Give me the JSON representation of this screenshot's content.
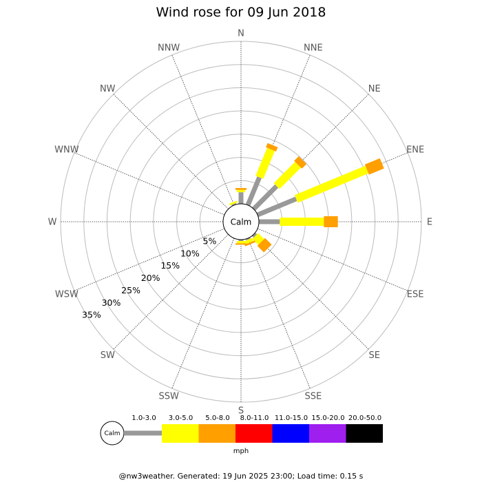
{
  "title": "Wind rose for 09 Jun 2018",
  "footer": "@nw3weather. Generated: 19 Jun 2025 23:00; Load time: 0.15 s",
  "calm_label": "Calm",
  "unit": "mph",
  "chart_data": {
    "type": "polar-stacked-bar",
    "title": "Wind rose for 09 Jun 2018",
    "directions": [
      "N",
      "NNE",
      "NE",
      "ENE",
      "E",
      "ESE",
      "SE",
      "SSE",
      "S",
      "SSW",
      "SW",
      "WSW",
      "W",
      "WNW",
      "NW",
      "NNW"
    ],
    "radial_ticks": [
      "5%",
      "10%",
      "15%",
      "20%",
      "25%",
      "30%",
      "35%"
    ],
    "radial_values": [
      5,
      10,
      15,
      20,
      25,
      30,
      35
    ],
    "radial_max": 35,
    "speed_bins": [
      "1.0-3.0",
      "3.0-5.0",
      "5.0-8.0",
      "8.0-11.0",
      "11.0-15.0",
      "15.0-20.0",
      "20.0-50.0"
    ],
    "bin_colors": [
      "#999999",
      "#ffff00",
      "#ff9f00",
      "#ff0000",
      "#0000ff",
      "#9f1fef",
      "#000000"
    ],
    "unit": "mph",
    "calm_percent": 2.5,
    "series": [
      {
        "name": "1.0-3.0",
        "values": [
          2.5,
          6.5,
          7.0,
          9.0,
          4.5,
          0,
          0.5,
          0.3,
          0.3,
          0,
          0,
          0,
          0,
          0,
          0,
          0.3
        ]
      },
      {
        "name": "3.0-5.0",
        "values": [
          0.5,
          6.5,
          6.5,
          16.5,
          9.5,
          0,
          1.8,
          0.7,
          0.5,
          0,
          0,
          0,
          0,
          0,
          0,
          0.4
        ]
      },
      {
        "name": "5.0-8.0",
        "values": [
          0.4,
          1.0,
          1.4,
          3.5,
          3.0,
          0,
          2.0,
          0.4,
          0.3,
          0,
          0,
          0,
          0,
          0,
          0,
          0
        ]
      },
      {
        "name": "8.0-11.0",
        "values": [
          0,
          0,
          0,
          0,
          0,
          0,
          0,
          0,
          0,
          0,
          0,
          0,
          0,
          0,
          0,
          0
        ]
      },
      {
        "name": "11.0-15.0",
        "values": [
          0,
          0,
          0,
          0,
          0,
          0,
          0,
          0,
          0,
          0,
          0,
          0,
          0,
          0,
          0,
          0
        ]
      },
      {
        "name": "15.0-20.0",
        "values": [
          0,
          0,
          0,
          0,
          0,
          0,
          0,
          0,
          0,
          0,
          0,
          0,
          0,
          0,
          0,
          0
        ]
      },
      {
        "name": "20.0-50.0",
        "values": [
          0,
          0,
          0,
          0,
          0,
          0,
          0,
          0,
          0,
          0,
          0,
          0,
          0,
          0,
          0,
          0
        ]
      }
    ]
  }
}
